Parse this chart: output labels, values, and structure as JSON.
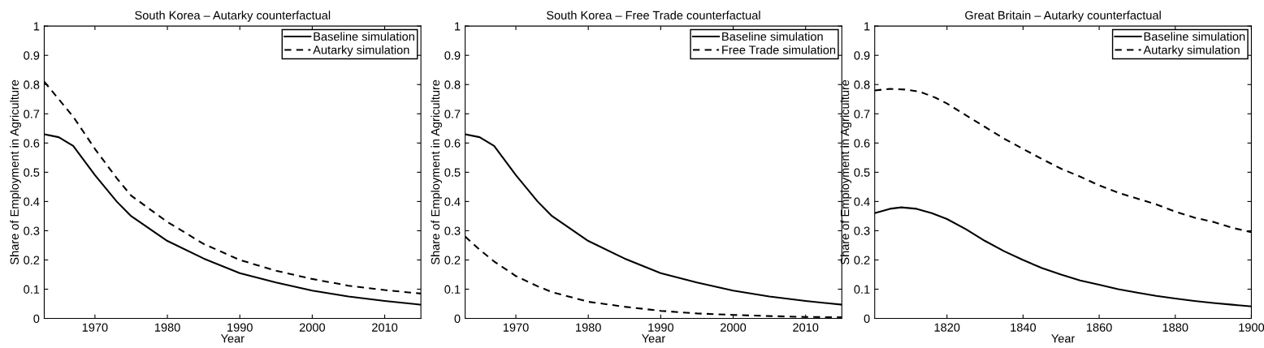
{
  "chart_data": [
    {
      "type": "line",
      "title": "South Korea – Autarky counterfactual",
      "xlabel": "Year",
      "ylabel": "Share of Employment in Agriculture",
      "xlim": [
        1963,
        2015
      ],
      "xticks": [
        1970,
        1980,
        1990,
        2000,
        2010
      ],
      "ylim": [
        0,
        1
      ],
      "yticks": [
        0,
        0.1,
        0.2,
        0.3,
        0.4,
        0.5,
        0.6,
        0.7,
        0.8,
        0.9,
        1
      ],
      "legend": "top right",
      "grid": false,
      "series": [
        {
          "name": "Baseline simulation",
          "color": "#000000",
          "line_style": "solid",
          "x": [
            1963,
            1965,
            1967,
            1970,
            1973,
            1975,
            1980,
            1985,
            1990,
            1995,
            2000,
            2005,
            2010,
            2015
          ],
          "values": [
            0.63,
            0.62,
            0.59,
            0.49,
            0.4,
            0.35,
            0.265,
            0.205,
            0.155,
            0.123,
            0.095,
            0.075,
            0.06,
            0.047
          ]
        },
        {
          "name": "Autarky simulation",
          "color": "#000000",
          "line_style": "dashed",
          "x": [
            1963,
            1965,
            1967,
            1970,
            1973,
            1975,
            1980,
            1985,
            1990,
            1995,
            2000,
            2005,
            2010,
            2015
          ],
          "values": [
            0.81,
            0.75,
            0.69,
            0.58,
            0.48,
            0.42,
            0.33,
            0.255,
            0.2,
            0.163,
            0.135,
            0.112,
            0.097,
            0.085
          ]
        }
      ]
    },
    {
      "type": "line",
      "title": "South Korea – Free Trade counterfactual",
      "xlabel": "Year",
      "ylabel": "Share of Employment in Agriculture",
      "xlim": [
        1963,
        2015
      ],
      "xticks": [
        1970,
        1980,
        1990,
        2000,
        2010
      ],
      "ylim": [
        0,
        1
      ],
      "yticks": [
        0,
        0.1,
        0.2,
        0.3,
        0.4,
        0.5,
        0.6,
        0.7,
        0.8,
        0.9,
        1
      ],
      "legend": "top right",
      "grid": false,
      "series": [
        {
          "name": "Baseline simulation",
          "color": "#000000",
          "line_style": "solid",
          "x": [
            1963,
            1965,
            1967,
            1970,
            1973,
            1975,
            1980,
            1985,
            1990,
            1995,
            2000,
            2005,
            2010,
            2015
          ],
          "values": [
            0.63,
            0.62,
            0.59,
            0.49,
            0.4,
            0.35,
            0.265,
            0.205,
            0.155,
            0.123,
            0.095,
            0.075,
            0.06,
            0.047
          ]
        },
        {
          "name": "Free Trade simulation",
          "color": "#000000",
          "line_style": "dashed",
          "x": [
            1963,
            1965,
            1967,
            1970,
            1973,
            1975,
            1980,
            1985,
            1990,
            1995,
            2000,
            2005,
            2010,
            2015
          ],
          "values": [
            0.28,
            0.235,
            0.195,
            0.145,
            0.11,
            0.09,
            0.057,
            0.04,
            0.026,
            0.017,
            0.012,
            0.008,
            0.005,
            0.004
          ]
        }
      ]
    },
    {
      "type": "line",
      "title": "Great Britain – Autarky counterfactual",
      "xlabel": "Year",
      "ylabel": "Share of Employment in Agriculture",
      "xlim": [
        1801,
        1900
      ],
      "xticks": [
        1820,
        1840,
        1860,
        1880,
        1900
      ],
      "ylim": [
        0,
        1
      ],
      "yticks": [
        0,
        0.1,
        0.2,
        0.3,
        0.4,
        0.5,
        0.6,
        0.7,
        0.8,
        0.9,
        1
      ],
      "legend": "top right",
      "grid": false,
      "series": [
        {
          "name": "Baseline simulation",
          "color": "#000000",
          "line_style": "solid",
          "x": [
            1801,
            1805,
            1808,
            1812,
            1816,
            1820,
            1825,
            1830,
            1835,
            1840,
            1845,
            1850,
            1855,
            1860,
            1865,
            1870,
            1875,
            1880,
            1885,
            1890,
            1895,
            1900
          ],
          "values": [
            0.36,
            0.375,
            0.38,
            0.375,
            0.36,
            0.34,
            0.305,
            0.265,
            0.23,
            0.2,
            0.172,
            0.15,
            0.13,
            0.115,
            0.1,
            0.088,
            0.077,
            0.068,
            0.06,
            0.053,
            0.047,
            0.041
          ]
        },
        {
          "name": "Autarky simulation",
          "color": "#000000",
          "line_style": "dashed",
          "x": [
            1801,
            1805,
            1809,
            1813,
            1817,
            1820,
            1825,
            1830,
            1835,
            1840,
            1845,
            1850,
            1855,
            1860,
            1865,
            1870,
            1875,
            1880,
            1885,
            1890,
            1895,
            1900
          ],
          "values": [
            0.78,
            0.785,
            0.783,
            0.775,
            0.755,
            0.735,
            0.695,
            0.655,
            0.615,
            0.58,
            0.545,
            0.512,
            0.485,
            0.455,
            0.43,
            0.41,
            0.39,
            0.365,
            0.345,
            0.33,
            0.31,
            0.295
          ]
        }
      ]
    }
  ]
}
